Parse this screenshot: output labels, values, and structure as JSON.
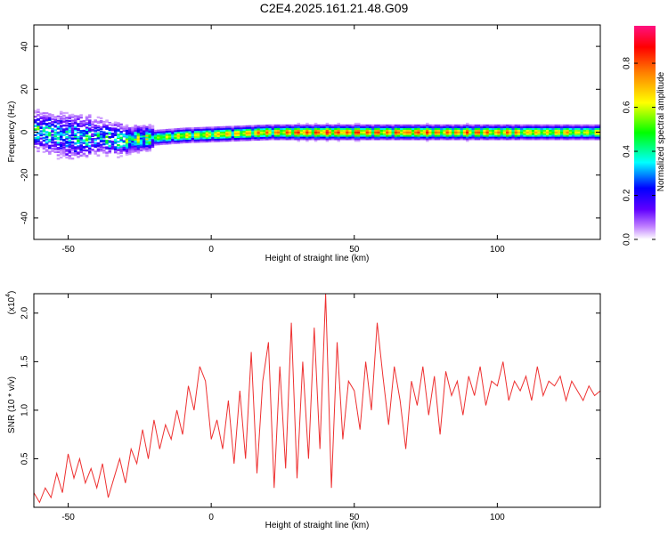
{
  "title": "C2E4.2025.161.21.48.G09",
  "chart_data": [
    {
      "type": "heatmap",
      "xlabel": "Height of straight line (km)",
      "ylabel": "Frequency (Hz)",
      "xlim": [
        -62,
        136
      ],
      "ylim": [
        -50,
        50
      ],
      "xticks": [
        -50,
        0,
        50,
        100
      ],
      "xtick_labels": [
        "-50",
        "0",
        "50",
        "100"
      ],
      "yticks": [
        -40,
        -20,
        0,
        20,
        40
      ],
      "ytick_labels": [
        "-40",
        "-20",
        "0",
        "20",
        "40"
      ],
      "colorbar": {
        "label": "Normalized spectral amplitude",
        "range": [
          0,
          0.97
        ],
        "ticks": [
          0.0,
          0.2,
          0.4,
          0.6,
          0.8
        ],
        "tick_labels": [
          "0.0",
          "0.2",
          "0.4",
          "0.6",
          "0.8"
        ],
        "colors": [
          "#ffffff",
          "#8000ff",
          "#0000ff",
          "#00ffff",
          "#00ff00",
          "#ffff00",
          "#ff8000",
          "#ff0000",
          "#ff0080"
        ]
      },
      "band": [
        {
          "x": -62,
          "center": 1.0,
          "halfwidth": 4,
          "amplitude": 0.45
        },
        {
          "x": -50,
          "center": -2.0,
          "halfwidth": 5,
          "amplitude": 0.4
        },
        {
          "x": -40,
          "center": -2.0,
          "halfwidth": 4,
          "amplitude": 0.38
        },
        {
          "x": -30,
          "center": -3.5,
          "halfwidth": 3,
          "amplitude": 0.5
        },
        {
          "x": -20,
          "center": -2.5,
          "halfwidth": 2.5,
          "amplitude": 0.6
        },
        {
          "x": -10,
          "center": -1.5,
          "halfwidth": 2.5,
          "amplitude": 0.7
        },
        {
          "x": 0,
          "center": -1.0,
          "halfwidth": 2.5,
          "amplitude": 0.75
        },
        {
          "x": 20,
          "center": 0.0,
          "halfwidth": 2.5,
          "amplitude": 0.8
        },
        {
          "x": 40,
          "center": 0.0,
          "halfwidth": 2.5,
          "amplitude": 0.9
        },
        {
          "x": 60,
          "center": 0.0,
          "halfwidth": 2.5,
          "amplitude": 0.85
        },
        {
          "x": 80,
          "center": 0.0,
          "halfwidth": 2.5,
          "amplitude": 0.85
        },
        {
          "x": 100,
          "center": 0.0,
          "halfwidth": 2.5,
          "amplitude": 0.8
        },
        {
          "x": 120,
          "center": 0.0,
          "halfwidth": 2.5,
          "amplitude": 0.75
        },
        {
          "x": 136,
          "center": 0.0,
          "halfwidth": 2.5,
          "amplitude": 0.7
        }
      ]
    },
    {
      "type": "line",
      "xlabel": "Height of straight line (km)",
      "ylabel": "SNR (10 * v/v)",
      "multiplier_label": "(x10",
      "multiplier_exp": "4",
      "xlim": [
        -62,
        136
      ],
      "ylim": [
        0,
        2.2
      ],
      "xticks": [
        -50,
        0,
        50,
        100
      ],
      "xtick_labels": [
        "-50",
        "0",
        "50",
        "100"
      ],
      "yticks": [
        0.5,
        1.0,
        1.5,
        2.0
      ],
      "ytick_labels": [
        "0.5",
        "1.0",
        "1.5",
        "2.0"
      ],
      "color": "#ee3030",
      "series": [
        {
          "x": [
            -62,
            -60,
            -58,
            -56,
            -54,
            -52,
            -50,
            -48,
            -46,
            -44,
            -42,
            -40,
            -38,
            -36,
            -34,
            -32,
            -30,
            -28,
            -26,
            -24,
            -22,
            -20,
            -18,
            -16,
            -14,
            -12,
            -10,
            -8,
            -6,
            -4,
            -2,
            0,
            2,
            4,
            6,
            8,
            10,
            12,
            14,
            16,
            18,
            20,
            22,
            24,
            26,
            28,
            30,
            32,
            34,
            36,
            38,
            40,
            42,
            44,
            46,
            48,
            50,
            52,
            54,
            56,
            58,
            60,
            62,
            64,
            66,
            68,
            70,
            72,
            74,
            76,
            78,
            80,
            82,
            84,
            86,
            88,
            90,
            92,
            94,
            96,
            98,
            100,
            102,
            104,
            106,
            108,
            110,
            112,
            114,
            116,
            118,
            120,
            122,
            124,
            126,
            128,
            130,
            132,
            134,
            136
          ],
          "y": [
            0.15,
            0.05,
            0.2,
            0.1,
            0.35,
            0.15,
            0.55,
            0.3,
            0.5,
            0.25,
            0.4,
            0.2,
            0.45,
            0.1,
            0.3,
            0.5,
            0.25,
            0.6,
            0.45,
            0.8,
            0.5,
            0.9,
            0.6,
            0.85,
            0.7,
            1.0,
            0.75,
            1.25,
            1.0,
            1.45,
            1.3,
            0.7,
            0.9,
            0.6,
            1.1,
            0.45,
            1.2,
            0.5,
            1.6,
            0.35,
            1.3,
            1.7,
            0.2,
            1.45,
            0.4,
            1.9,
            0.3,
            1.5,
            0.5,
            1.85,
            0.6,
            2.2,
            0.2,
            1.7,
            0.7,
            1.3,
            1.2,
            0.8,
            1.5,
            1.0,
            1.9,
            1.35,
            0.85,
            1.45,
            1.1,
            0.6,
            1.3,
            1.05,
            1.45,
            0.95,
            1.35,
            0.75,
            1.4,
            1.15,
            1.3,
            0.95,
            1.35,
            1.15,
            1.45,
            1.05,
            1.3,
            1.25,
            1.5,
            1.1,
            1.3,
            1.2,
            1.35,
            1.1,
            1.45,
            1.15,
            1.3,
            1.25,
            1.35,
            1.1,
            1.3,
            1.2,
            1.1,
            1.25,
            1.15,
            1.2
          ]
        }
      ]
    }
  ]
}
